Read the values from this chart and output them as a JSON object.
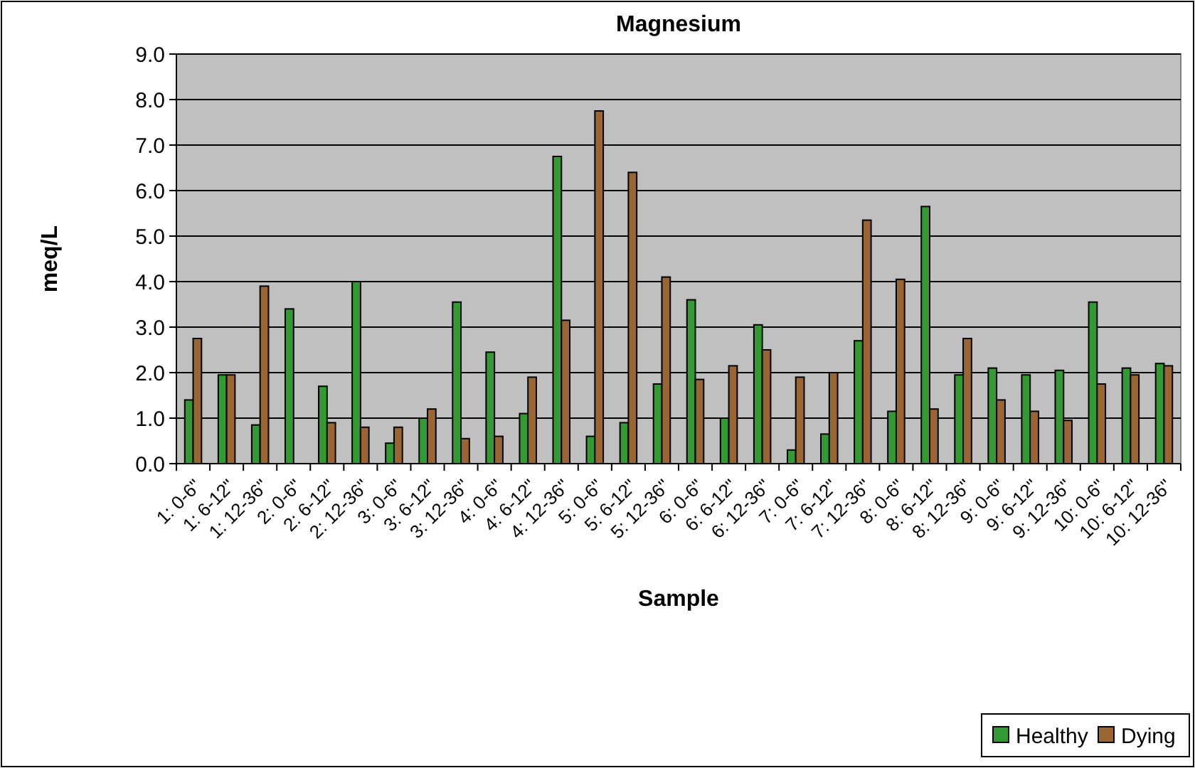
{
  "chart_data": {
    "type": "bar",
    "title": "Magnesium",
    "xlabel": "Sample",
    "ylabel": "meq/L",
    "categories": [
      "1: 0-6\"",
      "1: 6-12\"",
      "1: 12-36\"",
      "2: 0-6\"",
      "2: 6-12\"",
      "2: 12-36\"",
      "3: 0-6\"",
      "3: 6-12\"",
      "3: 12-36\"",
      "4: 0-6\"",
      "4: 6-12\"",
      "4: 12-36\"",
      "5: 0-6\"",
      "5: 6-12\"",
      "5: 12-36\"",
      "6: 0-6\"",
      "6: 6-12\"",
      "6: 12-36\"",
      "7: 0-6\"",
      "7: 6-12\"",
      "7: 12-36\"",
      "8: 0-6\"",
      "8: 6-12\"",
      "8: 12-36\"",
      "9: 0-6\"",
      "9: 6-12\"",
      "9: 12-36\"",
      "10: 0-6\"",
      "10: 6-12\"",
      "10: 12-36\""
    ],
    "series": [
      {
        "name": "Healthy",
        "color": "#339933",
        "values": [
          1.4,
          1.95,
          0.85,
          3.4,
          1.7,
          4.0,
          0.45,
          1.0,
          3.55,
          2.45,
          1.1,
          6.75,
          0.6,
          0.9,
          1.75,
          3.6,
          1.0,
          3.05,
          0.3,
          0.65,
          2.7,
          1.15,
          5.65,
          1.95,
          2.1,
          1.95,
          2.05,
          3.55,
          2.1,
          2.2
        ]
      },
      {
        "name": "Dying",
        "color": "#996633",
        "values": [
          2.75,
          1.95,
          3.9,
          null,
          0.9,
          0.8,
          0.8,
          1.2,
          0.55,
          0.6,
          1.9,
          3.15,
          7.75,
          6.4,
          4.1,
          1.85,
          2.15,
          2.5,
          1.9,
          2.0,
          5.35,
          4.05,
          1.2,
          2.75,
          1.4,
          1.15,
          0.95,
          1.75,
          1.95,
          2.15
        ]
      }
    ],
    "ylim": [
      0,
      9
    ],
    "yticks": [
      {
        "value": 0,
        "label": "0.0"
      },
      {
        "value": 1,
        "label": "1.0"
      },
      {
        "value": 2,
        "label": "2.0"
      },
      {
        "value": 3,
        "label": "3.0"
      },
      {
        "value": 4,
        "label": "4.0"
      },
      {
        "value": 5,
        "label": "5.0"
      },
      {
        "value": 6,
        "label": "6.0"
      },
      {
        "value": 7,
        "label": "7.0"
      },
      {
        "value": 8,
        "label": "8.0"
      },
      {
        "value": 9,
        "label": "9.0"
      }
    ],
    "grid": "y",
    "legend": "bottom right"
  }
}
